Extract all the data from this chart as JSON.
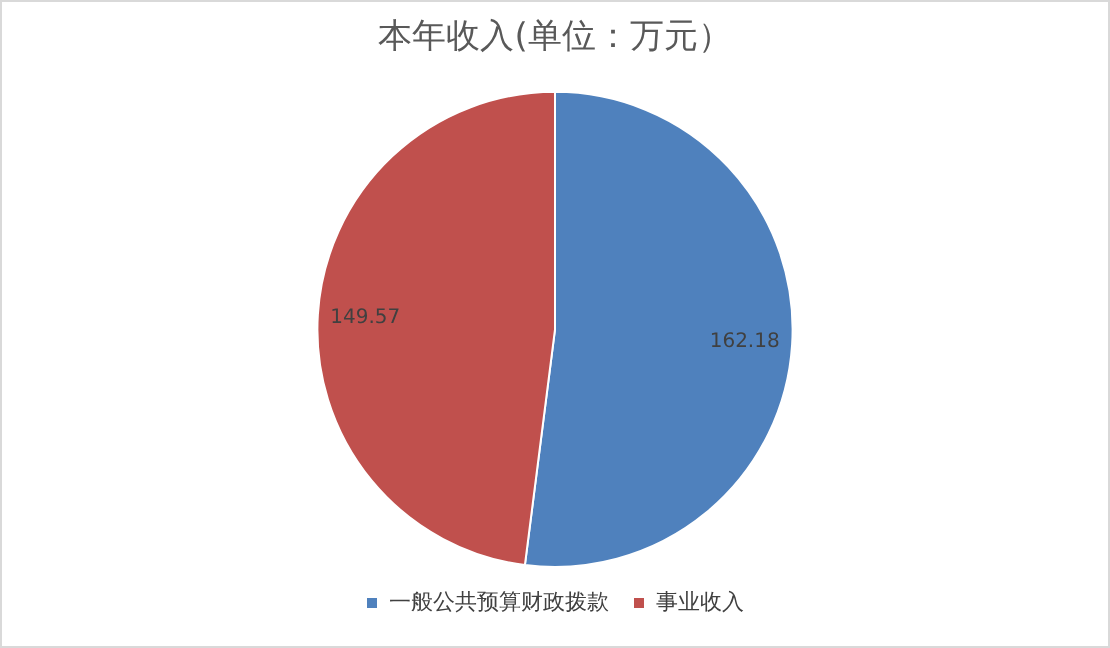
{
  "chart_data": {
    "type": "pie",
    "title": "本年收入(单位：万元）",
    "categories": [
      "一般公共预算财政拨款",
      "事业收入"
    ],
    "values": [
      162.18,
      149.57
    ],
    "colors": [
      "#4f81bd",
      "#c0504d"
    ],
    "data_labels": true,
    "legend": "bottom"
  }
}
